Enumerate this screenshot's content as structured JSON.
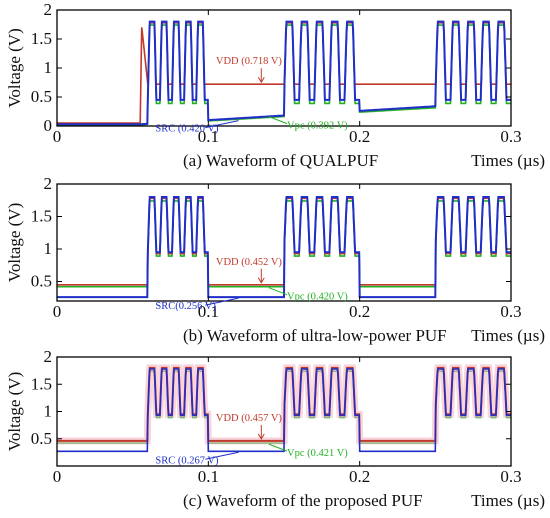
{
  "colors": {
    "vdd": "#c0392b",
    "src": "#1f2fc8",
    "vpc": "#22b022",
    "axis": "#000000",
    "glow": "#f4b8c4"
  },
  "chart_data": [
    {
      "type": "line",
      "caption": "(a) Waveform of QUALPUF",
      "xlabel": "Times (µs)",
      "ylabel": "Voltage (V)",
      "xlim": [
        0,
        0.3
      ],
      "ylim": [
        0,
        2
      ],
      "xticks": [
        "0",
        "0.1",
        "0.2",
        "0.3"
      ],
      "yticks": [
        "0",
        "0.5",
        "1",
        "1.5",
        "2"
      ],
      "grid": false,
      "pulse_high": 1.8,
      "pulse_low": 0.45,
      "pulse_series": "src",
      "series": [
        {
          "key": "vdd",
          "label": "VDD (0.718 V)",
          "x": [
            0,
            0.055,
            0.056,
            0.06,
            0.1,
            0.25,
            0.3
          ],
          "y": [
            0.05,
            0.05,
            1.7,
            0.72,
            0.72,
            0.72,
            0.72
          ]
        },
        {
          "key": "src",
          "label": "SRC (0.420 V)",
          "x": [
            0,
            0.055,
            0.3
          ],
          "y": [
            0.03,
            0.03,
            0.42
          ]
        },
        {
          "key": "vpc",
          "label": "Vpc (0.392 V)",
          "x": [
            0,
            0.055,
            0.3
          ],
          "y": [
            0.02,
            0.02,
            0.39
          ]
        }
      ]
    },
    {
      "type": "line",
      "caption": "(b) Waveform of ultra-low-power PUF",
      "xlabel": "Times (µs)",
      "ylabel": "Voltage (V)",
      "xlim": [
        0,
        0.3
      ],
      "ylim": [
        0.2,
        2
      ],
      "xticks": [
        "0",
        "0.1",
        "0.2",
        "0.3"
      ],
      "yticks": [
        "0.5",
        "1",
        "1.5",
        "2"
      ],
      "grid": false,
      "pulse_high": 1.8,
      "pulse_low": 0.95,
      "pulse_series": "src",
      "series": [
        {
          "key": "vdd",
          "label": "VDD (0.452 V)",
          "x": [
            0,
            0.3
          ],
          "y": [
            0.45,
            0.45
          ]
        },
        {
          "key": "src",
          "label": "SRC(0.256 V)",
          "x": [
            0,
            0.3
          ],
          "y": [
            0.26,
            0.26
          ]
        },
        {
          "key": "vpc",
          "label": "Vpc (0.420 V)",
          "x": [
            0,
            0.3
          ],
          "y": [
            0.42,
            0.42
          ]
        }
      ]
    },
    {
      "type": "line",
      "caption": "(c) Waveform of the proposed PUF",
      "xlabel": "Times (µs)",
      "ylabel": "Voltage (V)",
      "xlim": [
        0,
        0.3
      ],
      "ylim": [
        0,
        2
      ],
      "xticks": [
        "0",
        "0.1",
        "0.2",
        "0.3"
      ],
      "yticks": [
        "0.5",
        "1",
        "1.5",
        "2"
      ],
      "grid": false,
      "pulse_high": 1.8,
      "pulse_low": 0.95,
      "pulse_series": "vdd",
      "series": [
        {
          "key": "vdd",
          "label": "VDD (0.457 V)",
          "x": [
            0,
            0.3
          ],
          "y": [
            0.46,
            0.46
          ]
        },
        {
          "key": "src",
          "label": "SRC (0.267 V)",
          "x": [
            0,
            0.3
          ],
          "y": [
            0.27,
            0.27
          ]
        },
        {
          "key": "vpc",
          "label": "Vpc (0.421 V)",
          "x": [
            0,
            0.3
          ],
          "y": [
            0.42,
            0.42
          ]
        }
      ]
    }
  ]
}
